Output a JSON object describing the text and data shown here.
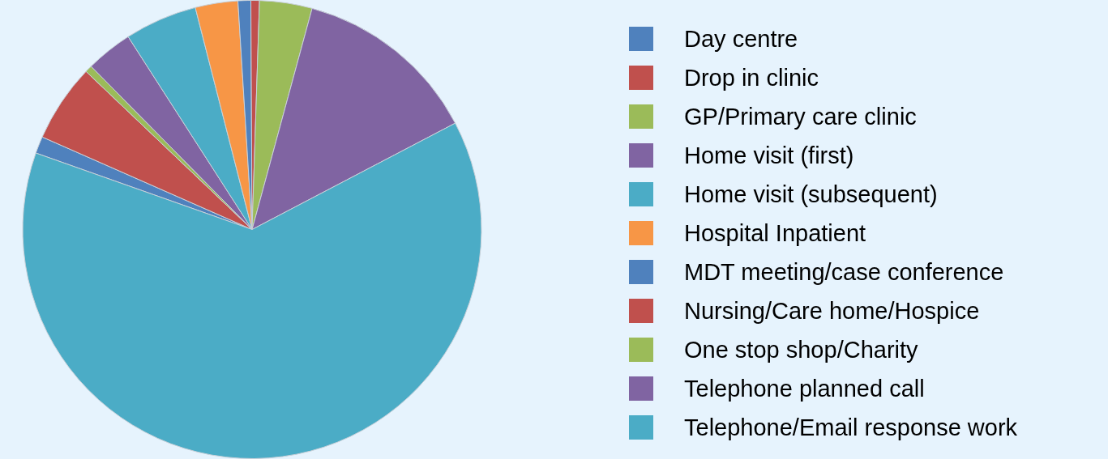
{
  "chart_data": {
    "type": "pie",
    "legend": "right",
    "categories": [
      "Day centre",
      "Drop in clinic",
      "GP/Primary care clinic",
      "Home visit (first)",
      "Home visit (subsequent)",
      "Hospital Inpatient",
      "MDT meeting/case conference",
      "Nursing/Care home/Hospice",
      "One stop shop/Charity",
      "Telephone planned call",
      "Telephone/Email response work"
    ],
    "values": [
      1.2,
      5.5,
      0.5,
      3.3,
      5.1,
      3.0,
      0.9,
      0.6,
      3.7,
      13.1,
      63.1
    ],
    "colors": [
      "#4f81bd",
      "#c0504d",
      "#9bbb59",
      "#8064a2",
      "#4bacc6",
      "#f79646",
      "#4f81bd",
      "#c0504d",
      "#9bbb59",
      "#8064a2",
      "#4bacc6"
    ]
  }
}
